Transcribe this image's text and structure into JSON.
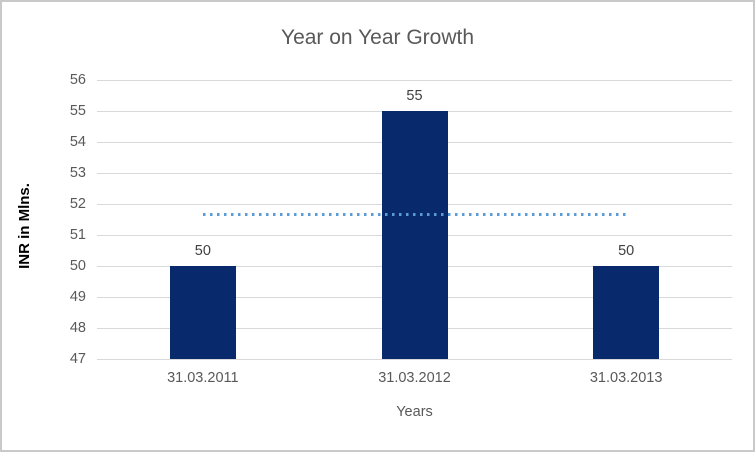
{
  "window": {
    "background_color": "#ffffff",
    "border_color": "#c9c9c9"
  },
  "chart_data": {
    "type": "bar",
    "title": "Year on Year Growth",
    "xlabel": "Years",
    "ylabel": "INR in Mlns.",
    "categories": [
      "31.03.2011",
      "31.03.2012",
      "31.03.2013"
    ],
    "values": [
      50,
      55,
      50
    ],
    "data_labels": [
      "50",
      "55",
      "50"
    ],
    "y_ticks": [
      47,
      48,
      49,
      50,
      51,
      52,
      53,
      54,
      55,
      56
    ],
    "ylim": [
      47,
      56
    ],
    "grid": "horizontal",
    "legend": "none",
    "trendline": {
      "type": "linear",
      "style": "dotted",
      "value_start": 51.67,
      "value_end": 51.67,
      "span": "first-bar-center-to-last-bar-center",
      "color": "#5b9bd5"
    },
    "colors": {
      "bar": "#08296b",
      "gridline": "#d9d9d9",
      "title": "#595959",
      "tick_label": "#595959",
      "data_label": "#404040",
      "axis_title_y": "#000000",
      "axis_title_x": "#595959"
    }
  }
}
